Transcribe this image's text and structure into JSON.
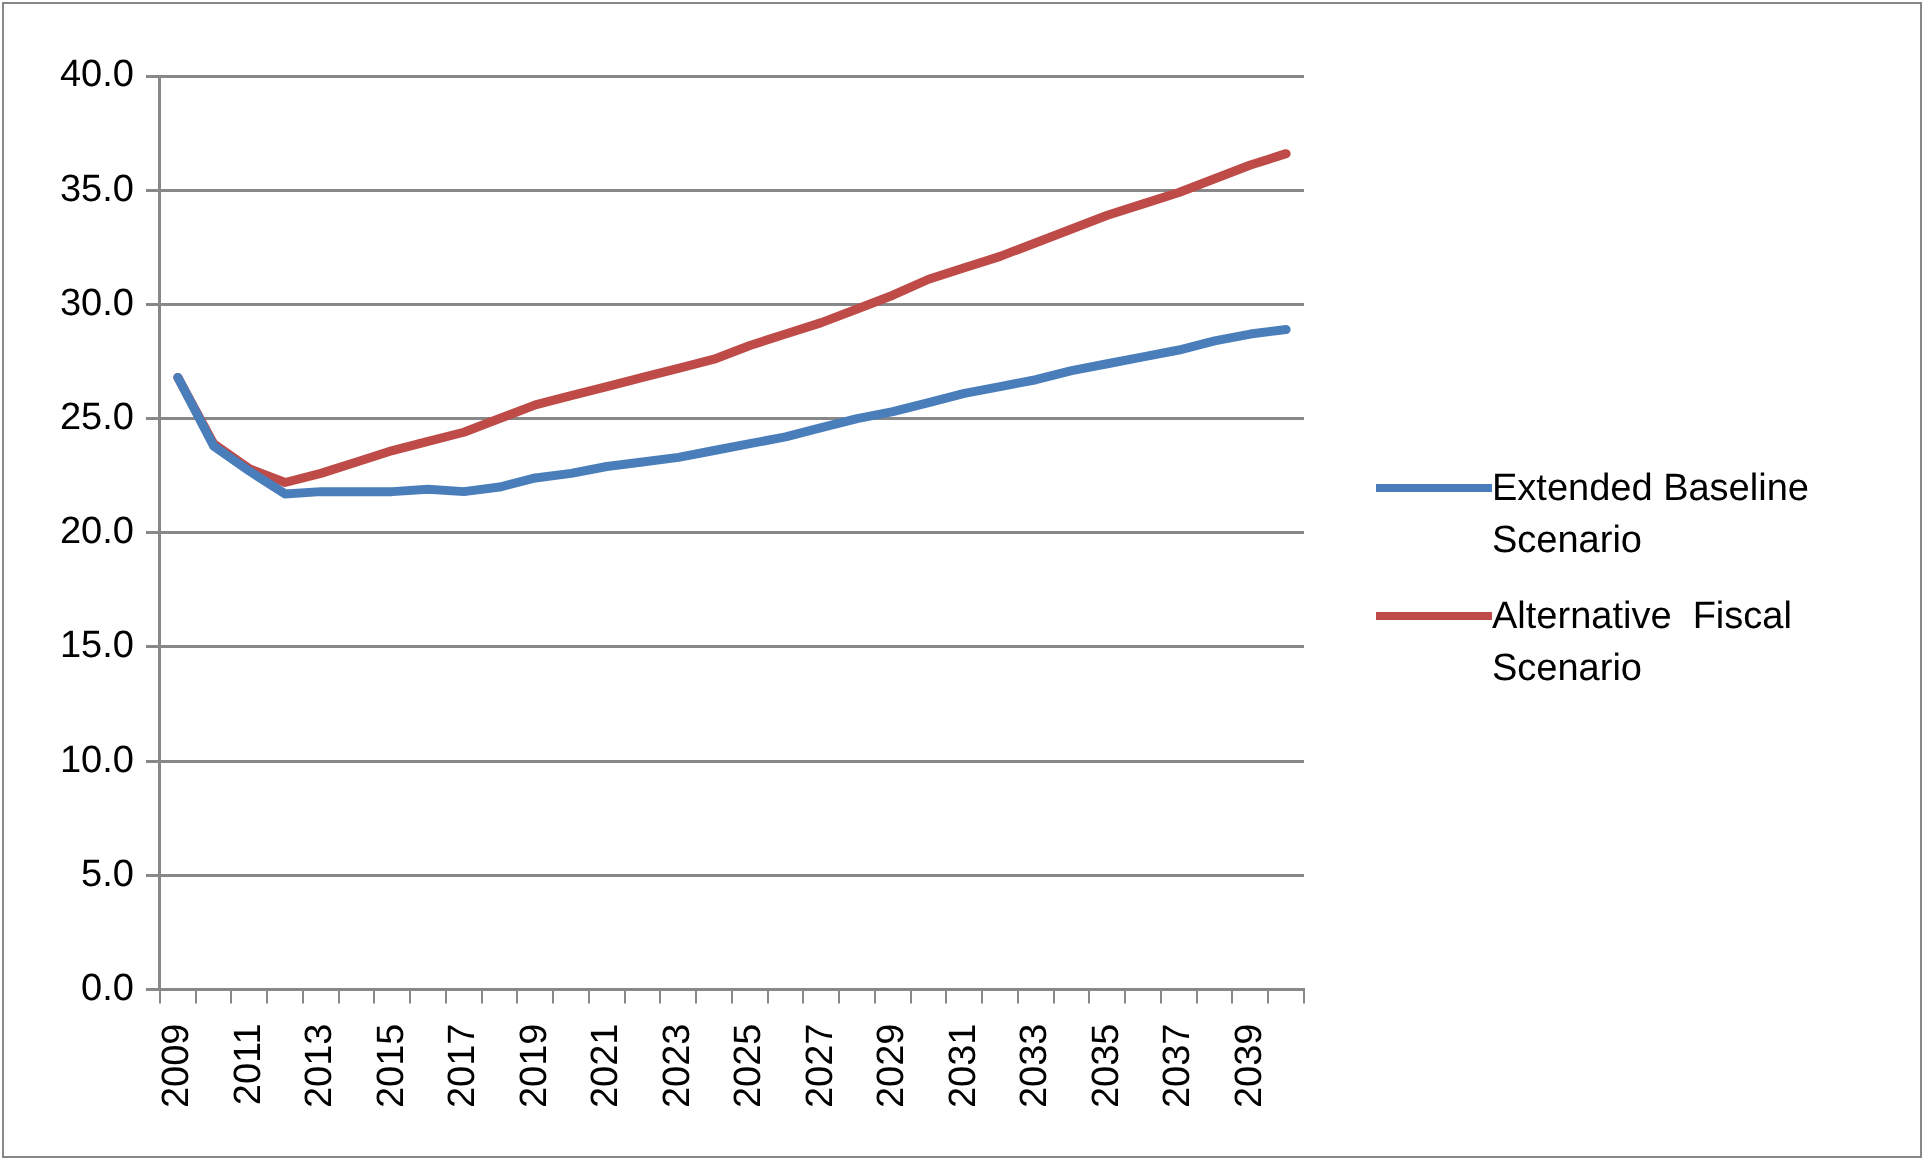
{
  "chart_data": {
    "type": "line",
    "categories": [
      "2009",
      null,
      "2011",
      null,
      "2013",
      null,
      "2015",
      null,
      "2017",
      null,
      "2019",
      null,
      "2021",
      null,
      "2023",
      null,
      "2025",
      null,
      "2027",
      null,
      "2029",
      null,
      "2031",
      null,
      "2033",
      null,
      "2035",
      null,
      "2037",
      null,
      "2039",
      null
    ],
    "series": [
      {
        "name": "Extended Baseline Scenario",
        "color": "#4a7ebb",
        "values": [
          26.8,
          23.8,
          22.7,
          21.7,
          21.8,
          21.8,
          21.8,
          21.9,
          21.8,
          22.0,
          22.4,
          22.6,
          22.9,
          23.1,
          23.3,
          23.6,
          23.9,
          24.2,
          24.6,
          25.0,
          25.3,
          25.7,
          26.1,
          26.4,
          26.7,
          27.1,
          27.4,
          27.7,
          28.0,
          28.4,
          28.7,
          28.9
        ]
      },
      {
        "name": "Alternative  Fiscal Scenario",
        "color": "#be4b48",
        "values": [
          26.8,
          23.9,
          22.8,
          22.2,
          22.6,
          23.1,
          23.6,
          24.0,
          24.4,
          25.0,
          25.6,
          26.0,
          26.4,
          26.8,
          27.2,
          27.6,
          28.2,
          28.7,
          29.2,
          29.8,
          30.4,
          31.1,
          31.6,
          32.1,
          32.7,
          33.3,
          33.9,
          34.4,
          34.9,
          35.5,
          36.1,
          36.6
        ]
      }
    ],
    "ylim": [
      0,
      40
    ],
    "yticks": [
      {
        "value": 0,
        "label": "0.0"
      },
      {
        "value": 5,
        "label": "5.0"
      },
      {
        "value": 10,
        "label": "10.0"
      },
      {
        "value": 15,
        "label": "15.0"
      },
      {
        "value": 20,
        "label": "20.0"
      },
      {
        "value": 25,
        "label": "25.0"
      },
      {
        "value": 30,
        "label": "30.0"
      },
      {
        "value": 35,
        "label": "35.0"
      },
      {
        "value": 40,
        "label": "40.0"
      }
    ],
    "grid": "y",
    "legend": "right",
    "marker": "none",
    "line_style": "solid"
  }
}
